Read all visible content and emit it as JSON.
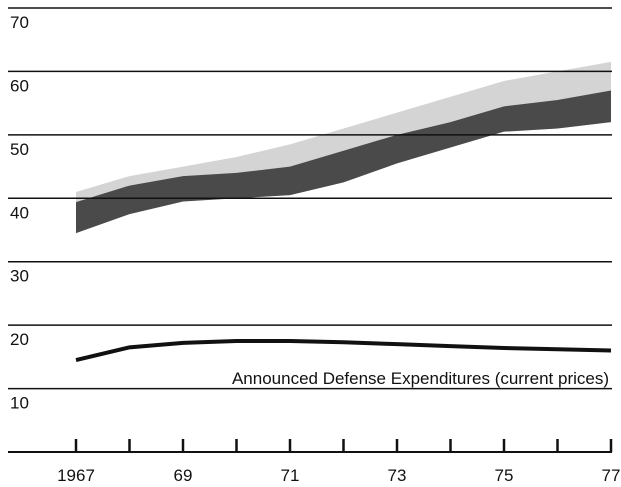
{
  "chart_data": {
    "type": "band-line",
    "x": [
      1967,
      1968,
      1969,
      1970,
      1971,
      1972,
      1973,
      1974,
      1975,
      1976,
      1977
    ],
    "xlim": [
      1967,
      1977
    ],
    "xticks": [
      {
        "value": 1967,
        "label": "1967"
      },
      {
        "value": 1969,
        "label": "69"
      },
      {
        "value": 1971,
        "label": "71"
      },
      {
        "value": 1973,
        "label": "73"
      },
      {
        "value": 1975,
        "label": "75"
      },
      {
        "value": 1977,
        "label": "77"
      }
    ],
    "minor_xticks": [
      1968,
      1970,
      1972,
      1974,
      1976
    ],
    "ylim": [
      0,
      70
    ],
    "yticks": [
      10,
      20,
      30,
      40,
      50,
      60,
      70
    ],
    "grid": true,
    "bands": [
      {
        "color": "#d4d4d4",
        "lower": [
          34.5,
          37.5,
          39.5,
          40,
          40.5,
          42.5,
          45.5,
          48,
          50.5,
          51,
          52
        ],
        "upper": [
          41,
          43.5,
          45,
          46.5,
          48.5,
          51,
          53.5,
          56,
          58.5,
          60,
          61.5
        ]
      },
      {
        "color": "#4a4a4a",
        "lower": [
          34.5,
          37.5,
          39.5,
          40,
          40.5,
          42.5,
          45.5,
          48,
          50.5,
          51,
          52
        ],
        "upper": [
          39.4,
          42,
          43.5,
          44,
          45,
          47.5,
          50,
          52,
          54.5,
          55.5,
          57
        ]
      }
    ],
    "series": [
      {
        "name": "Announced Defense Expenditures (current prices)",
        "color": "#111111",
        "values": [
          14.5,
          16.5,
          17.2,
          17.5,
          17.5,
          17.3,
          17.0,
          16.7,
          16.4,
          16.2,
          16.0
        ]
      }
    ]
  }
}
